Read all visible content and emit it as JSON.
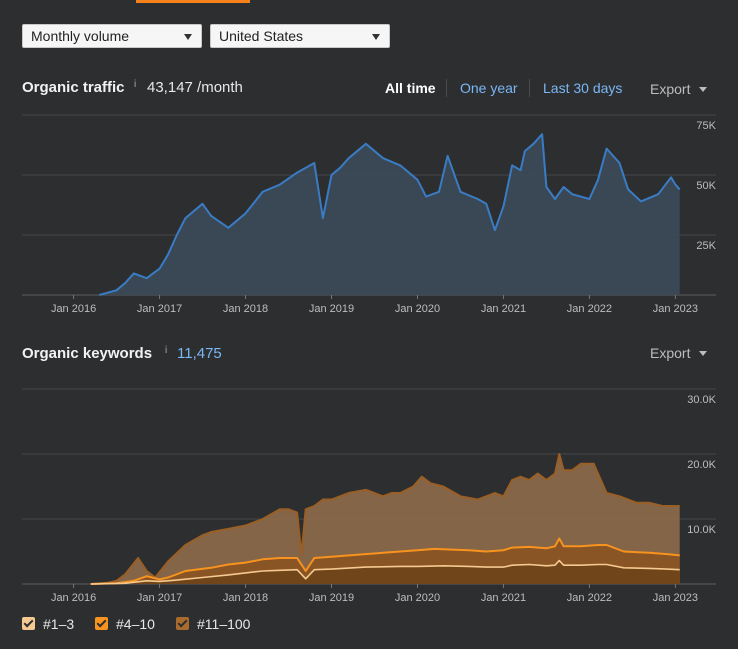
{
  "controls": {
    "volume_select": "Monthly volume",
    "country_select": "United States"
  },
  "traffic": {
    "title": "Organic traffic",
    "info_glyph": "i",
    "value": "43,147 /month",
    "range_all": "All time",
    "range_year": "One year",
    "range_30": "Last 30 days",
    "export": "Export"
  },
  "keywords": {
    "title": "Organic keywords",
    "info_glyph": "i",
    "value": "11,475",
    "export": "Export"
  },
  "legend": {
    "items": [
      {
        "label": "#1–3",
        "color": "#f5c98f"
      },
      {
        "label": "#4–10",
        "color": "#f7931e"
      },
      {
        "label": "#11–100",
        "color": "#a96a2e"
      }
    ]
  },
  "colors": {
    "background": "#2d2e30",
    "traffic_line": "#3a7cc4",
    "accent": "#f7821b",
    "link": "#7ab7f5"
  },
  "chart_data": [
    {
      "type": "area",
      "x_tick_labels": [
        "Jan 2016",
        "Jan 2017",
        "Jan 2018",
        "Jan 2019",
        "Jan 2020",
        "Jan 2021",
        "Jan 2022",
        "Jan 2023"
      ],
      "y_tick_labels": [
        "75K",
        "50K",
        "25K"
      ],
      "ylim": [
        0,
        75000
      ],
      "grid": true,
      "series": [
        {
          "x": [
            2016.3,
            2016.5,
            2016.6,
            2016.7,
            2016.85,
            2017.0,
            2017.1,
            2017.2,
            2017.3,
            2017.5,
            2017.6,
            2017.8,
            2018.0,
            2018.2,
            2018.4,
            2018.6,
            2018.8,
            2018.9,
            2019.0,
            2019.1,
            2019.2,
            2019.4,
            2019.6,
            2019.8,
            2020.0,
            2020.1,
            2020.25,
            2020.35,
            2020.5,
            2020.7,
            2020.8,
            2020.9,
            2021.0,
            2021.1,
            2021.2,
            2021.25,
            2021.35,
            2021.45,
            2021.5,
            2021.6,
            2021.7,
            2021.8,
            2022.0,
            2022.1,
            2022.2,
            2022.35,
            2022.45,
            2022.6,
            2022.8,
            2022.95,
            2023.0,
            2023.05
          ],
          "y": [
            0,
            2000,
            5000,
            9000,
            7000,
            11000,
            17000,
            25000,
            32000,
            38000,
            33000,
            28000,
            34000,
            43000,
            46000,
            51000,
            55000,
            32000,
            50000,
            53000,
            57000,
            63000,
            57000,
            54000,
            48000,
            41000,
            43000,
            58000,
            43000,
            40000,
            38000,
            27000,
            37000,
            54000,
            52000,
            60000,
            63000,
            67000,
            45000,
            40000,
            45000,
            42000,
            40000,
            48000,
            61000,
            55000,
            44000,
            39000,
            42000,
            49000,
            46000,
            44000
          ]
        }
      ]
    },
    {
      "type": "area",
      "x_tick_labels": [
        "Jan 2016",
        "Jan 2017",
        "Jan 2018",
        "Jan 2019",
        "Jan 2020",
        "Jan 2021",
        "Jan 2022",
        "Jan 2023"
      ],
      "y_tick_labels": [
        "30.0K",
        "20.0K",
        "10.0K"
      ],
      "ylim": [
        0,
        30000
      ],
      "grid": true,
      "series": [
        {
          "name": "#11–100",
          "x": [
            2016.2,
            2016.4,
            2016.5,
            2016.6,
            2016.75,
            2016.85,
            2016.95,
            2017.1,
            2017.3,
            2017.5,
            2017.6,
            2017.8,
            2018.0,
            2018.2,
            2018.4,
            2018.5,
            2018.6,
            2018.65,
            2018.7,
            2018.8,
            2018.9,
            2019.0,
            2019.1,
            2019.2,
            2019.4,
            2019.6,
            2019.7,
            2019.8,
            2019.95,
            2020.05,
            2020.15,
            2020.3,
            2020.5,
            2020.7,
            2020.9,
            2021.0,
            2021.1,
            2021.2,
            2021.3,
            2021.4,
            2021.5,
            2021.6,
            2021.65,
            2021.7,
            2021.8,
            2021.9,
            2022.05,
            2022.2,
            2022.35,
            2022.55,
            2022.7,
            2022.85,
            2023.05
          ],
          "y": [
            0,
            200,
            500,
            1500,
            4000,
            2000,
            1000,
            3500,
            6000,
            7500,
            8000,
            8500,
            9000,
            10000,
            11500,
            11500,
            11000,
            4500,
            11500,
            12000,
            13000,
            13000,
            13500,
            14000,
            14500,
            13500,
            14000,
            14000,
            15000,
            16500,
            15500,
            15000,
            13500,
            13000,
            14000,
            13500,
            16000,
            16500,
            16000,
            17000,
            16000,
            17000,
            20000,
            17500,
            17500,
            18500,
            18500,
            14000,
            13500,
            12500,
            12500,
            12000,
            12000
          ]
        },
        {
          "name": "#4–10",
          "x": [
            2016.2,
            2016.5,
            2016.7,
            2016.85,
            2017.0,
            2017.1,
            2017.3,
            2017.6,
            2017.8,
            2018.0,
            2018.2,
            2018.4,
            2018.6,
            2018.7,
            2018.8,
            2019.0,
            2019.3,
            2019.6,
            2019.8,
            2020.0,
            2020.2,
            2020.4,
            2020.6,
            2020.8,
            2021.0,
            2021.1,
            2021.3,
            2021.5,
            2021.6,
            2021.65,
            2021.7,
            2021.9,
            2022.1,
            2022.2,
            2022.4,
            2022.7,
            2022.9,
            2023.05
          ],
          "y": [
            0,
            100,
            500,
            1200,
            700,
            1000,
            2000,
            2500,
            3000,
            3300,
            3800,
            4000,
            4000,
            2000,
            4000,
            4200,
            4500,
            4800,
            5000,
            5200,
            5400,
            5300,
            5200,
            5000,
            5200,
            5600,
            5700,
            5500,
            5800,
            7000,
            5800,
            5800,
            6000,
            6000,
            5000,
            4800,
            4600,
            4400
          ]
        },
        {
          "name": "#1–3",
          "x": [
            2016.2,
            2016.6,
            2016.85,
            2017.0,
            2017.2,
            2017.5,
            2017.8,
            2018.0,
            2018.2,
            2018.4,
            2018.6,
            2018.7,
            2018.8,
            2019.0,
            2019.4,
            2019.8,
            2020.0,
            2020.3,
            2020.6,
            2020.8,
            2021.0,
            2021.1,
            2021.3,
            2021.5,
            2021.6,
            2021.65,
            2021.7,
            2021.9,
            2022.1,
            2022.2,
            2022.4,
            2022.7,
            2022.9,
            2023.05
          ],
          "y": [
            0,
            100,
            500,
            400,
            600,
            1000,
            1400,
            1700,
            2000,
            2100,
            2200,
            800,
            2200,
            2300,
            2600,
            2700,
            2700,
            2800,
            2700,
            2600,
            2600,
            2900,
            3000,
            2800,
            2900,
            3600,
            2900,
            2900,
            3000,
            3000,
            2500,
            2400,
            2300,
            2200
          ]
        }
      ]
    }
  ]
}
